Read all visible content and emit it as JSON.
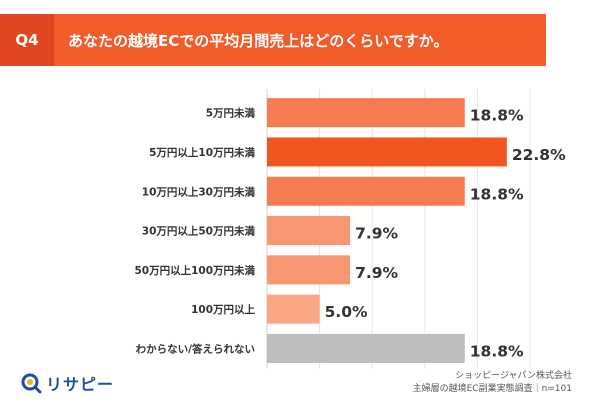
{
  "header": {
    "tag": "Q4",
    "question": "あなたの越境ECでの平均月間売上はどのくらいですか。"
  },
  "chart_data": {
    "type": "bar",
    "orientation": "horizontal",
    "categories": [
      "5万円未満",
      "5万円以上10万円未満",
      "10万円以上30万円未満",
      "30万円以上50万円未満",
      "50万円以上100万円未満",
      "100万円以上",
      "わからない/答えられない"
    ],
    "values": [
      18.8,
      22.8,
      18.8,
      7.9,
      7.9,
      5.0,
      18.8
    ],
    "value_labels": [
      "18.8%",
      "22.8%",
      "18.8%",
      "7.9%",
      "7.9%",
      "5.0%",
      "18.8%"
    ],
    "colors": [
      "#f47c50",
      "#f2561f",
      "#f47c50",
      "#f79771",
      "#f79771",
      "#f9a684",
      "#bdbdbd"
    ],
    "xlim": [
      0,
      25
    ],
    "grid": true
  },
  "logo": {
    "text": "リサピー",
    "icon": "magnifier-icon"
  },
  "source": {
    "line1": "ショッピージャパン株式会社",
    "line2": "主婦層の越境EC副業実態調査｜n=101"
  }
}
